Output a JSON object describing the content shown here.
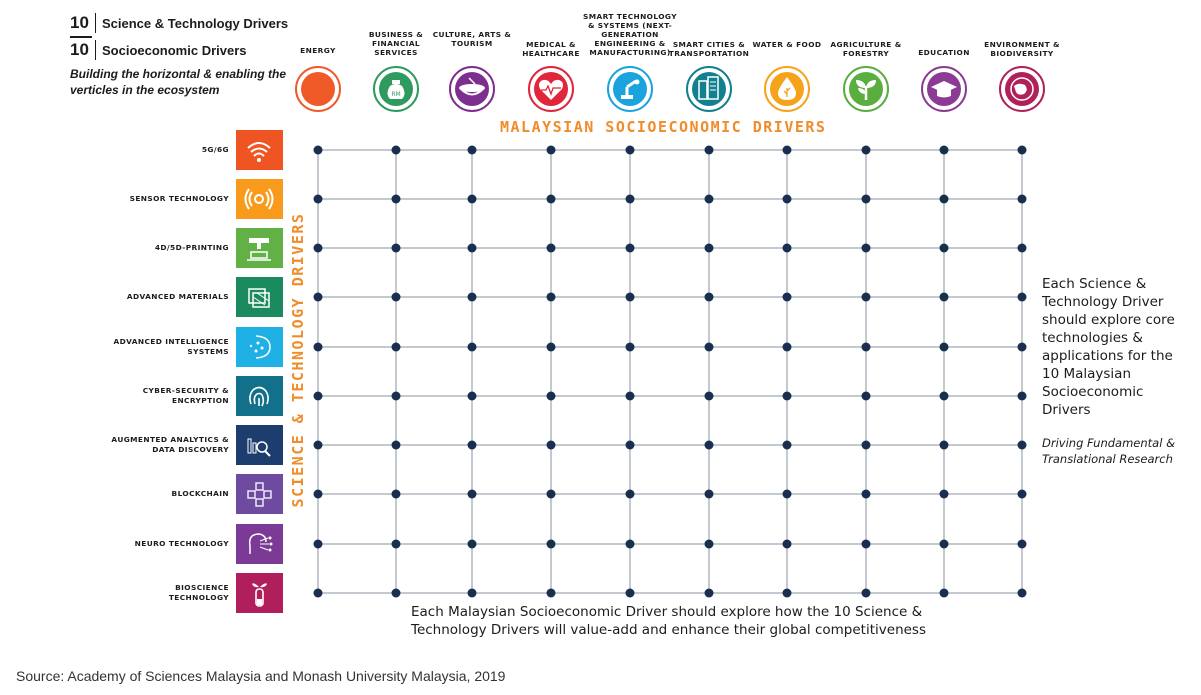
{
  "legend": {
    "st_number": "10",
    "st_label": "Science & Technology Drivers",
    "se_number": "10",
    "se_label": "Socioeconomic Drivers",
    "subtitle": "Building the horizontal & enabling the verticles in the ecosystem"
  },
  "axis_titles": {
    "top": "MALAYSIAN SOCIOECONOMIC DRIVERS",
    "left": "SCIENCE & TECHNOLOGY DRIVERS"
  },
  "columns": [
    {
      "label": "ENERGY",
      "icon": "lightning-icon",
      "color": "#f05a28"
    },
    {
      "label": "BUSINESS & FINANCIAL SERVICES",
      "icon": "money-bag-icon",
      "color": "#2f9a5e"
    },
    {
      "label": "CULTURE, ARTS & TOURISM",
      "icon": "drum-icon",
      "color": "#7d2f8f"
    },
    {
      "label": "MEDICAL & HEALTHCARE",
      "icon": "heartbeat-icon",
      "color": "#e0263a"
    },
    {
      "label": "SMART TECHNOLOGY & SYSTEMS (NEXT-GENERATION ENGINEERING & MANUFACTURING)",
      "icon": "robot-arm-icon",
      "color": "#1aa3dc"
    },
    {
      "label": "SMART CITIES & TRANSPORTATION",
      "icon": "city-icon",
      "color": "#13808f"
    },
    {
      "label": "WATER & FOOD",
      "icon": "water-drop-icon",
      "color": "#f7a21b"
    },
    {
      "label": "AGRICULTURE & FORESTRY",
      "icon": "plant-icon",
      "color": "#5aad3f"
    },
    {
      "label": "EDUCATION",
      "icon": "graduation-cap-icon",
      "color": "#8c3b94"
    },
    {
      "label": "ENVIRONMENT & BIODIVERSITY",
      "icon": "globe-nature-icon",
      "color": "#b0215a"
    }
  ],
  "rows": [
    {
      "label": "5G/6G",
      "icon": "wifi-icon",
      "color": "#ef5423"
    },
    {
      "label": "SENSOR TECHNOLOGY",
      "icon": "sensor-icon",
      "color": "#f89a1c"
    },
    {
      "label": "4D/5D-PRINTING",
      "icon": "printer-icon",
      "color": "#62b146"
    },
    {
      "label": "ADVANCED MATERIALS",
      "icon": "materials-icon",
      "color": "#1b8a5e"
    },
    {
      "label": "ADVANCED INTELLIGENCE SYSTEMS",
      "icon": "brain-icon",
      "color": "#1fb1e6"
    },
    {
      "label": "CYBER-SECURITY & ENCRYPTION",
      "icon": "fingerprint-icon",
      "color": "#13708a"
    },
    {
      "label": "AUGMENTED ANALYTICS & DATA DISCOVERY",
      "icon": "analytics-icon",
      "color": "#1c3d6e"
    },
    {
      "label": "BLOCKCHAIN",
      "icon": "blockchain-icon",
      "color": "#6e4ba1"
    },
    {
      "label": "NEURO TECHNOLOGY",
      "icon": "neuro-icon",
      "color": "#7b3a96"
    },
    {
      "label": "BIOSCIENCE TECHNOLOGY",
      "icon": "test-tube-icon",
      "color": "#b01f5c"
    }
  ],
  "side_note": "Each Science & Technology Driver should explore core technologies & applications for the 10 Malaysian Socioeconomic Drivers",
  "side_italic": "Driving Fundamental & Translational Research",
  "bottom_note": "Each Malaysian Socioeconomic Driver should explore how the 10 Science & Technology Drivers will value-add and enhance their global competitiveness",
  "source": "Source: Academy of Sciences Malaysia and Monash University Malaysia, 2019",
  "colors": {
    "grid_line": "#8a93a0",
    "node": "#1a2f4f",
    "accent": "#f08c2a"
  }
}
